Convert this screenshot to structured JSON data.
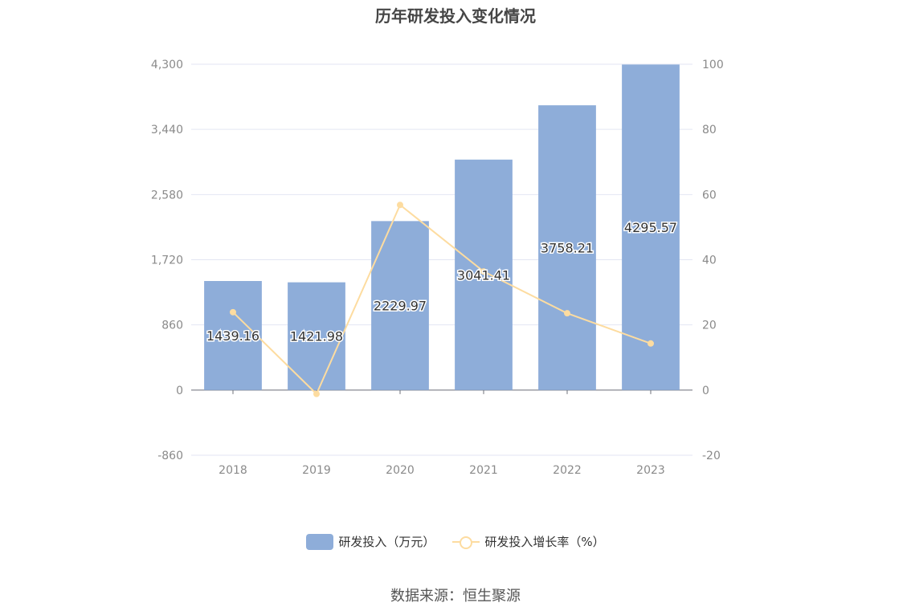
{
  "title": "历年研发投入变化情况",
  "source": "数据来源：恒生聚源",
  "chart_data": {
    "type": "bar",
    "categories": [
      "2018",
      "2019",
      "2020",
      "2021",
      "2022",
      "2023"
    ],
    "series": [
      {
        "name": "研发投入（万元）",
        "type": "bar",
        "axis": "left",
        "values": [
          1439.16,
          1421.98,
          2229.97,
          3041.41,
          3758.21,
          4295.57
        ],
        "labels": [
          "1439.16",
          "1421.98",
          "2229.97",
          "3041.41",
          "3758.21",
          "4295.57"
        ],
        "color": "#8eadd9"
      },
      {
        "name": "研发投入增长率（%）",
        "type": "line",
        "axis": "right",
        "values": [
          23.9,
          -1.19,
          56.82,
          36.39,
          23.57,
          14.3
        ],
        "color": "#fddca0"
      }
    ],
    "y_left": {
      "ticks": [
        "4,300",
        "3,440",
        "2,580",
        "1,720",
        "860",
        "0",
        "-860"
      ],
      "ylim": [
        -860,
        4300
      ]
    },
    "y_right": {
      "ticks": [
        "100",
        "80",
        "60",
        "40",
        "20",
        "0",
        "-20"
      ],
      "ylim": [
        -20,
        100
      ]
    },
    "grid": true,
    "legend_position": "bottom"
  }
}
